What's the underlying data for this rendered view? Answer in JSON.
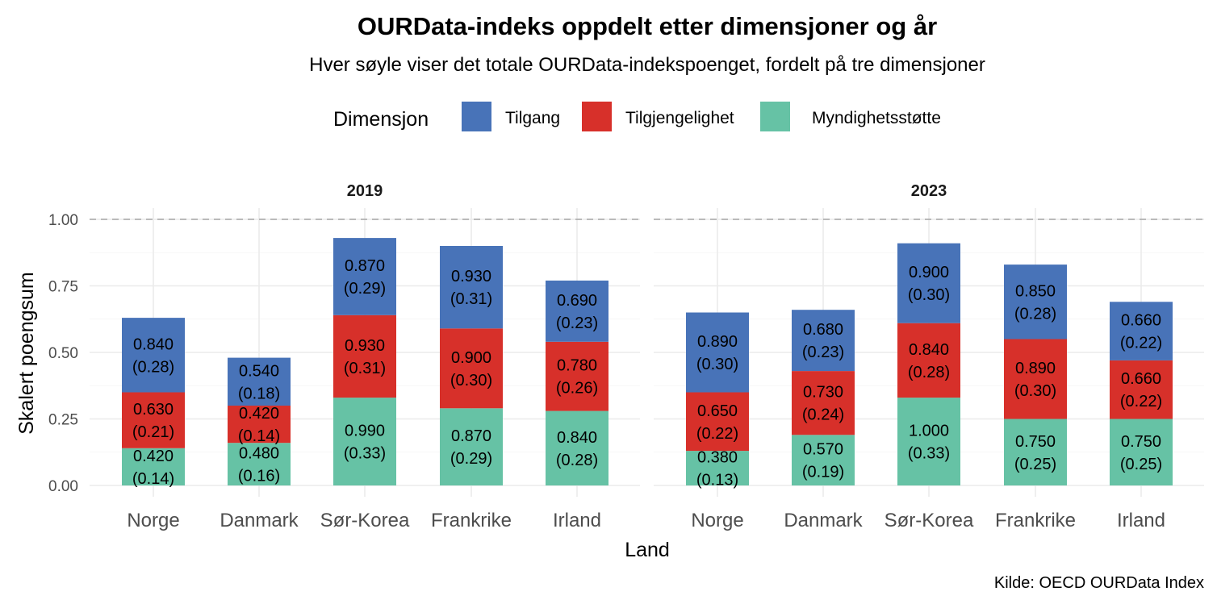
{
  "chart_data": {
    "type": "bar",
    "stacked": true,
    "title": "OURData-indeks oppdelt etter dimensjoner og år",
    "subtitle": "Hver søyle viser det totale OURData-indekspoenget, fordelt på tre dimensjoner",
    "xlabel": "Land",
    "ylabel": "Skalert poengsum",
    "caption": "Kilde: OECD OURData Index",
    "ylim": [
      0,
      1.0
    ],
    "yticks": [
      "0.00",
      "0.25",
      "0.50",
      "0.75",
      "1.00"
    ],
    "reference_line": 1.0,
    "grid": true,
    "legend": {
      "title": "Dimensjon",
      "position": "top",
      "entries": [
        "Tilgang",
        "Tilgjengelighet",
        "Myndighetsstøtte"
      ]
    },
    "colors": {
      "Tilgang": "#4873b8",
      "Tilgjengelighet": "#d7302a",
      "Myndighetsstøtte": "#66c2a5"
    },
    "categories": [
      "Norge",
      "Danmark",
      "Sør-Korea",
      "Frankrike",
      "Irland"
    ],
    "panels": [
      {
        "label": "2019",
        "series": [
          {
            "name": "Myndighetsstøtte",
            "values": [
              0.14,
              0.16,
              0.33,
              0.29,
              0.28
            ],
            "labels": [
              "0.420\n(0.14)",
              "0.480\n(0.16)",
              "0.990\n(0.33)",
              "0.870\n(0.29)",
              "0.840\n(0.28)"
            ]
          },
          {
            "name": "Tilgjengelighet",
            "values": [
              0.21,
              0.14,
              0.31,
              0.3,
              0.26
            ],
            "labels": [
              "0.630\n(0.21)",
              "0.420\n(0.14)",
              "0.930\n(0.31)",
              "0.900\n(0.30)",
              "0.780\n(0.26)"
            ]
          },
          {
            "name": "Tilgang",
            "values": [
              0.28,
              0.18,
              0.29,
              0.31,
              0.23
            ],
            "labels": [
              "0.840\n(0.28)",
              "0.540\n(0.18)",
              "0.870\n(0.29)",
              "0.930\n(0.31)",
              "0.690\n(0.23)"
            ]
          }
        ]
      },
      {
        "label": "2023",
        "series": [
          {
            "name": "Myndighetsstøtte",
            "values": [
              0.13,
              0.19,
              0.33,
              0.25,
              0.25
            ],
            "labels": [
              "0.380\n(0.13)",
              "0.570\n(0.19)",
              "1.000\n(0.33)",
              "0.750\n(0.25)",
              "0.750\n(0.25)"
            ]
          },
          {
            "name": "Tilgjengelighet",
            "values": [
              0.22,
              0.24,
              0.28,
              0.3,
              0.22
            ],
            "labels": [
              "0.650\n(0.22)",
              "0.730\n(0.24)",
              "0.840\n(0.28)",
              "0.890\n(0.30)",
              "0.660\n(0.22)"
            ]
          },
          {
            "name": "Tilgang",
            "values": [
              0.3,
              0.23,
              0.3,
              0.28,
              0.22
            ],
            "labels": [
              "0.890\n(0.30)",
              "0.680\n(0.23)",
              "0.900\n(0.30)",
              "0.850\n(0.28)",
              "0.660\n(0.22)"
            ]
          }
        ]
      }
    ]
  }
}
